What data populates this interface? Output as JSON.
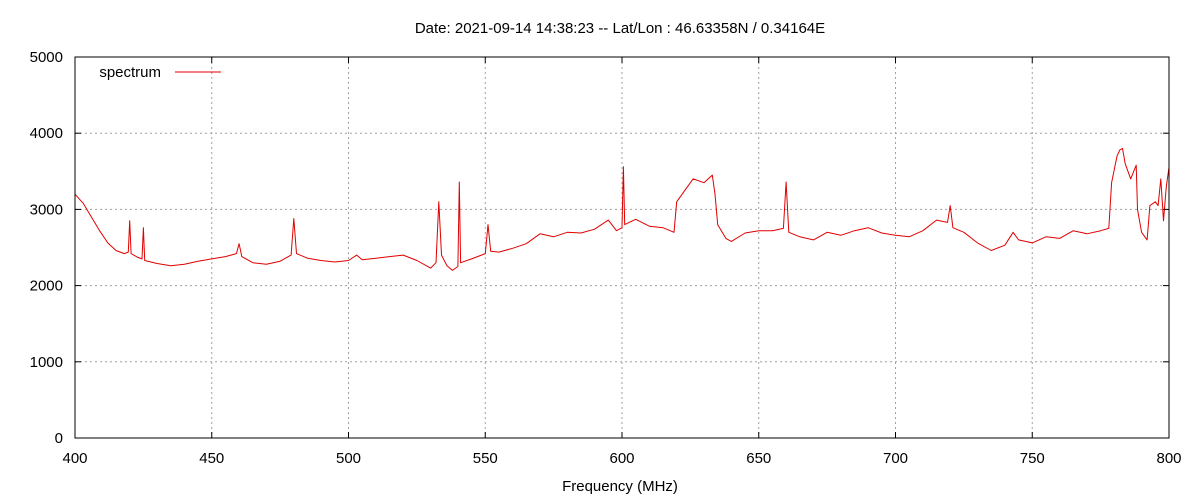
{
  "chart_data": {
    "type": "line",
    "title": "Date: 2021-09-14 14:38:23  --  Lat/Lon : 46.63358N / 0.34164E",
    "xlabel": "Frequency (MHz)",
    "ylabel": "",
    "xlim": [
      400,
      800
    ],
    "ylim": [
      0,
      5000
    ],
    "x_ticks": [
      400,
      450,
      500,
      550,
      600,
      650,
      700,
      750,
      800
    ],
    "y_ticks": [
      0,
      1000,
      2000,
      3000,
      4000,
      5000
    ],
    "grid": true,
    "legend_position": "top-left",
    "series": [
      {
        "name": "spectrum",
        "color": "#e00000",
        "points": [
          [
            400,
            3200
          ],
          [
            403,
            3080
          ],
          [
            406,
            2900
          ],
          [
            409,
            2720
          ],
          [
            412,
            2560
          ],
          [
            415,
            2460
          ],
          [
            418,
            2420
          ],
          [
            419.5,
            2440
          ],
          [
            420,
            2850
          ],
          [
            420.5,
            2420
          ],
          [
            423,
            2370
          ],
          [
            424.5,
            2350
          ],
          [
            425,
            2760
          ],
          [
            425.5,
            2330
          ],
          [
            430,
            2290
          ],
          [
            435,
            2260
          ],
          [
            440,
            2280
          ],
          [
            445,
            2320
          ],
          [
            450,
            2350
          ],
          [
            455,
            2380
          ],
          [
            459,
            2420
          ],
          [
            460,
            2550
          ],
          [
            461,
            2380
          ],
          [
            465,
            2300
          ],
          [
            470,
            2280
          ],
          [
            475,
            2320
          ],
          [
            479,
            2400
          ],
          [
            480,
            2880
          ],
          [
            481,
            2420
          ],
          [
            485,
            2360
          ],
          [
            490,
            2330
          ],
          [
            495,
            2310
          ],
          [
            500,
            2330
          ],
          [
            503,
            2400
          ],
          [
            505,
            2340
          ],
          [
            510,
            2360
          ],
          [
            515,
            2380
          ],
          [
            520,
            2400
          ],
          [
            525,
            2330
          ],
          [
            530,
            2230
          ],
          [
            532,
            2300
          ],
          [
            533,
            3100
          ],
          [
            534,
            2400
          ],
          [
            536,
            2260
          ],
          [
            538,
            2200
          ],
          [
            540,
            2250
          ],
          [
            540.5,
            3360
          ],
          [
            541,
            2300
          ],
          [
            545,
            2350
          ],
          [
            550,
            2420
          ],
          [
            551,
            2800
          ],
          [
            552,
            2450
          ],
          [
            555,
            2440
          ],
          [
            560,
            2490
          ],
          [
            565,
            2550
          ],
          [
            570,
            2680
          ],
          [
            575,
            2640
          ],
          [
            580,
            2700
          ],
          [
            585,
            2690
          ],
          [
            590,
            2740
          ],
          [
            595,
            2860
          ],
          [
            598,
            2720
          ],
          [
            600,
            2760
          ],
          [
            600.5,
            3560
          ],
          [
            601,
            2800
          ],
          [
            605,
            2870
          ],
          [
            610,
            2780
          ],
          [
            615,
            2760
          ],
          [
            619,
            2700
          ],
          [
            620,
            3100
          ],
          [
            623,
            3250
          ],
          [
            626,
            3400
          ],
          [
            630,
            3350
          ],
          [
            633,
            3450
          ],
          [
            634,
            3200
          ],
          [
            635,
            2800
          ],
          [
            638,
            2620
          ],
          [
            640,
            2580
          ],
          [
            645,
            2690
          ],
          [
            650,
            2720
          ],
          [
            655,
            2720
          ],
          [
            659,
            2750
          ],
          [
            660,
            3360
          ],
          [
            661,
            2700
          ],
          [
            665,
            2640
          ],
          [
            670,
            2600
          ],
          [
            675,
            2700
          ],
          [
            680,
            2660
          ],
          [
            685,
            2720
          ],
          [
            690,
            2760
          ],
          [
            695,
            2690
          ],
          [
            700,
            2660
          ],
          [
            705,
            2640
          ],
          [
            710,
            2720
          ],
          [
            715,
            2860
          ],
          [
            719,
            2830
          ],
          [
            720,
            3050
          ],
          [
            721,
            2760
          ],
          [
            725,
            2700
          ],
          [
            730,
            2560
          ],
          [
            735,
            2460
          ],
          [
            740,
            2530
          ],
          [
            743,
            2700
          ],
          [
            745,
            2600
          ],
          [
            750,
            2560
          ],
          [
            755,
            2640
          ],
          [
            760,
            2620
          ],
          [
            765,
            2720
          ],
          [
            770,
            2680
          ],
          [
            775,
            2720
          ],
          [
            778,
            2750
          ],
          [
            779,
            3350
          ],
          [
            781,
            3700
          ],
          [
            782,
            3780
          ],
          [
            783,
            3800
          ],
          [
            784,
            3600
          ],
          [
            786,
            3400
          ],
          [
            788,
            3580
          ],
          [
            788.5,
            3000
          ],
          [
            790,
            2700
          ],
          [
            792,
            2600
          ],
          [
            793,
            3050
          ],
          [
            795,
            3100
          ],
          [
            796,
            3050
          ],
          [
            797,
            3400
          ],
          [
            798,
            2850
          ],
          [
            799,
            3300
          ],
          [
            800,
            3550
          ]
        ]
      }
    ]
  }
}
